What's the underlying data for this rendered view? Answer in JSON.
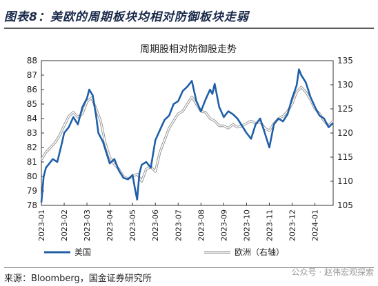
{
  "figure": {
    "title": "图表8：美欧的周期板块均相对防御板块走弱",
    "source": "来源：Bloomberg，国金证券研究所",
    "watermark": "公众号 · 赵伟宏观探索"
  },
  "chart_data": {
    "type": "line",
    "title": "周期股相对防御股走势",
    "x_ticks": [
      "2023-01",
      "2023-02",
      "2023-03",
      "2023-04",
      "2023-05",
      "2023-06",
      "2023-07",
      "2023-08",
      "2023-09",
      "2023-10",
      "2023-11",
      "2023-12",
      "2024-01"
    ],
    "y_left": {
      "lim": [
        78,
        88
      ],
      "ticks": [
        78,
        79,
        80,
        81,
        82,
        83,
        84,
        85,
        86,
        87,
        88
      ]
    },
    "y_right": {
      "lim": [
        105,
        135
      ],
      "ticks": [
        105,
        110,
        115,
        120,
        125,
        130,
        135
      ]
    },
    "series": [
      {
        "name": "美国",
        "axis": "left",
        "color": "#1f5fa8",
        "x": [
          0,
          0.1,
          0.2,
          0.35,
          0.5,
          0.7,
          0.9,
          1.0,
          1.2,
          1.4,
          1.6,
          1.8,
          2.0,
          2.1,
          2.25,
          2.4,
          2.5,
          2.7,
          2.9,
          3.0,
          3.2,
          3.4,
          3.6,
          3.8,
          4.0,
          4.1,
          4.2,
          4.3,
          4.4,
          4.6,
          4.8,
          5.0,
          5.2,
          5.4,
          5.6,
          5.8,
          6.0,
          6.2,
          6.4,
          6.6,
          6.8,
          7.0,
          7.2,
          7.4,
          7.5,
          7.6,
          7.8,
          8.0,
          8.2,
          8.4,
          8.6,
          8.8,
          9.0,
          9.2,
          9.4,
          9.6,
          9.8,
          10.0,
          10.2,
          10.4,
          10.6,
          10.8,
          11.0,
          11.2,
          11.3,
          11.4,
          11.6,
          11.8,
          12.0,
          12.2,
          12.4,
          12.6,
          12.8
        ],
        "values": [
          78.2,
          80.0,
          80.6,
          80.9,
          81.2,
          81.0,
          82.3,
          83.0,
          83.4,
          84.1,
          83.6,
          84.8,
          85.4,
          86.0,
          85.6,
          84.2,
          83.0,
          82.4,
          81.4,
          80.9,
          81.2,
          80.4,
          79.9,
          79.8,
          80.1,
          79.2,
          78.4,
          80.2,
          80.8,
          81.0,
          80.6,
          82.5,
          83.2,
          83.9,
          84.2,
          85.0,
          85.2,
          85.9,
          86.2,
          86.6,
          85.2,
          84.5,
          85.3,
          86.0,
          85.7,
          86.4,
          84.8,
          84.1,
          84.5,
          84.3,
          84.0,
          83.5,
          83.0,
          82.6,
          83.6,
          84.0,
          83.0,
          82.0,
          83.6,
          84.0,
          83.8,
          84.3,
          85.4,
          86.3,
          87.4,
          87.0,
          86.5,
          85.5,
          84.8,
          84.2,
          84.0,
          83.4,
          83.7
        ]
      },
      {
        "name": "欧洲（右轴）",
        "axis": "right",
        "color": "#b3b3b3",
        "x": [
          0,
          0.2,
          0.4,
          0.6,
          0.8,
          1.0,
          1.2,
          1.4,
          1.6,
          1.8,
          2.0,
          2.2,
          2.4,
          2.6,
          2.8,
          3.0,
          3.2,
          3.4,
          3.6,
          3.8,
          4.0,
          4.2,
          4.4,
          4.6,
          4.8,
          5.0,
          5.2,
          5.4,
          5.6,
          5.8,
          6.0,
          6.2,
          6.4,
          6.6,
          6.8,
          7.0,
          7.2,
          7.4,
          7.6,
          7.8,
          8.0,
          8.2,
          8.4,
          8.6,
          8.8,
          9.0,
          9.2,
          9.4,
          9.6,
          9.8,
          10.0,
          10.2,
          10.4,
          10.6,
          10.8,
          11.0,
          11.2,
          11.4,
          11.6,
          11.8,
          12.0,
          12.2,
          12.4,
          12.6,
          12.8
        ],
        "values": [
          114.5,
          116.0,
          117.0,
          118.0,
          119.5,
          121.5,
          123.5,
          124.3,
          123.3,
          124.0,
          126.5,
          127.3,
          125.0,
          122.5,
          118.0,
          115.0,
          113.5,
          112.5,
          111.0,
          110.5,
          111.0,
          111.5,
          110.0,
          112.5,
          113.0,
          112.0,
          116.0,
          118.5,
          121.0,
          122.5,
          124.0,
          124.5,
          126.0,
          127.5,
          126.0,
          124.5,
          124.3,
          123.0,
          122.5,
          121.5,
          121.5,
          121.0,
          121.8,
          121.2,
          121.5,
          122.0,
          122.5,
          122.0,
          122.3,
          121.0,
          120.5,
          122.0,
          123.0,
          123.5,
          124.5,
          126.0,
          128.5,
          129.5,
          128.5,
          127.0,
          125.0,
          124.0,
          122.5,
          121.5,
          122.5
        ]
      }
    ],
    "legend": [
      "美国",
      "欧洲（右轴）"
    ],
    "legend_position": "bottom",
    "grid": false
  }
}
